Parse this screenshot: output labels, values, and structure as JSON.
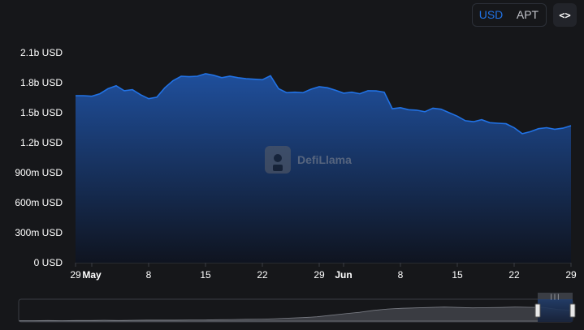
{
  "controls": {
    "currency_options": [
      {
        "label": "USD",
        "active": true
      },
      {
        "label": "APT",
        "active": false
      }
    ],
    "embed_icon": "code-brackets-icon",
    "embed_label": "<>"
  },
  "watermark": {
    "text": "DefiLlama",
    "icon": "llama-logo-icon"
  },
  "colors": {
    "line": "#2172e5",
    "area_top": "#1f4f9c",
    "area_bottom": "#0f1420",
    "background": "#16171a"
  },
  "chart_data": {
    "type": "area",
    "title": "",
    "xlabel": "",
    "ylabel": "",
    "unit": "USD",
    "ylim": [
      0,
      2100000000
    ],
    "y_ticks": [
      "0 USD",
      "300m USD",
      "600m USD",
      "900m USD",
      "1.2b USD",
      "1.5b USD",
      "1.8b USD",
      "2.1b USD"
    ],
    "x_ticks": [
      {
        "label": "29",
        "bold": false
      },
      {
        "label": "May",
        "bold": true
      },
      {
        "label": "8",
        "bold": false
      },
      {
        "label": "15",
        "bold": false
      },
      {
        "label": "22",
        "bold": false
      },
      {
        "label": "29",
        "bold": false
      },
      {
        "label": "Jun",
        "bold": true
      },
      {
        "label": "8",
        "bold": false
      },
      {
        "label": "15",
        "bold": false
      },
      {
        "label": "22",
        "bold": false
      },
      {
        "label": "29",
        "bold": false
      }
    ],
    "x": [
      "Apr 29",
      "Apr 30",
      "May 1",
      "May 2",
      "May 3",
      "May 4",
      "May 5",
      "May 6",
      "May 7",
      "May 8",
      "May 9",
      "May 10",
      "May 11",
      "May 12",
      "May 13",
      "May 14",
      "May 15",
      "May 16",
      "May 17",
      "May 18",
      "May 19",
      "May 20",
      "May 21",
      "May 22",
      "May 23",
      "May 24",
      "May 25",
      "May 26",
      "May 27",
      "May 28",
      "May 29",
      "May 30",
      "May 31",
      "Jun 1",
      "Jun 2",
      "Jun 3",
      "Jun 4",
      "Jun 5",
      "Jun 6",
      "Jun 7",
      "Jun 8",
      "Jun 9",
      "Jun 10",
      "Jun 11",
      "Jun 12",
      "Jun 13",
      "Jun 14",
      "Jun 15",
      "Jun 16",
      "Jun 17",
      "Jun 18",
      "Jun 19",
      "Jun 20",
      "Jun 21",
      "Jun 22",
      "Jun 23",
      "Jun 24",
      "Jun 25",
      "Jun 26",
      "Jun 27",
      "Jun 28",
      "Jun 29"
    ],
    "series": [
      {
        "values": [
          1670000000,
          1670000000,
          1665000000,
          1690000000,
          1740000000,
          1770000000,
          1720000000,
          1730000000,
          1680000000,
          1640000000,
          1655000000,
          1750000000,
          1820000000,
          1865000000,
          1860000000,
          1865000000,
          1890000000,
          1875000000,
          1850000000,
          1865000000,
          1850000000,
          1840000000,
          1835000000,
          1830000000,
          1870000000,
          1740000000,
          1700000000,
          1705000000,
          1700000000,
          1735000000,
          1760000000,
          1750000000,
          1725000000,
          1695000000,
          1705000000,
          1690000000,
          1720000000,
          1718000000,
          1705000000,
          1540000000,
          1550000000,
          1530000000,
          1525000000,
          1510000000,
          1545000000,
          1535000000,
          1500000000,
          1465000000,
          1420000000,
          1410000000,
          1430000000,
          1400000000,
          1395000000,
          1390000000,
          1350000000,
          1290000000,
          1310000000,
          1340000000,
          1350000000,
          1335000000,
          1345000000,
          1370000000
        ]
      }
    ],
    "grid": false,
    "legend": "none"
  },
  "range_selector": {
    "handle_icon": "drag-handle-icon",
    "overview_values": [
      0.02,
      0.02,
      0.03,
      0.02,
      0.03,
      0.03,
      0.04,
      0.03,
      0.04,
      0.05,
      0.05,
      0.05,
      0.06,
      0.06,
      0.07,
      0.08,
      0.09,
      0.1,
      0.12,
      0.15,
      0.18,
      0.22,
      0.3,
      0.38,
      0.45,
      0.55,
      0.62,
      0.66,
      0.68,
      0.7,
      0.72,
      0.7,
      0.68,
      0.69,
      0.7,
      0.72,
      0.71,
      0.7,
      0.6,
      0.55
    ]
  }
}
